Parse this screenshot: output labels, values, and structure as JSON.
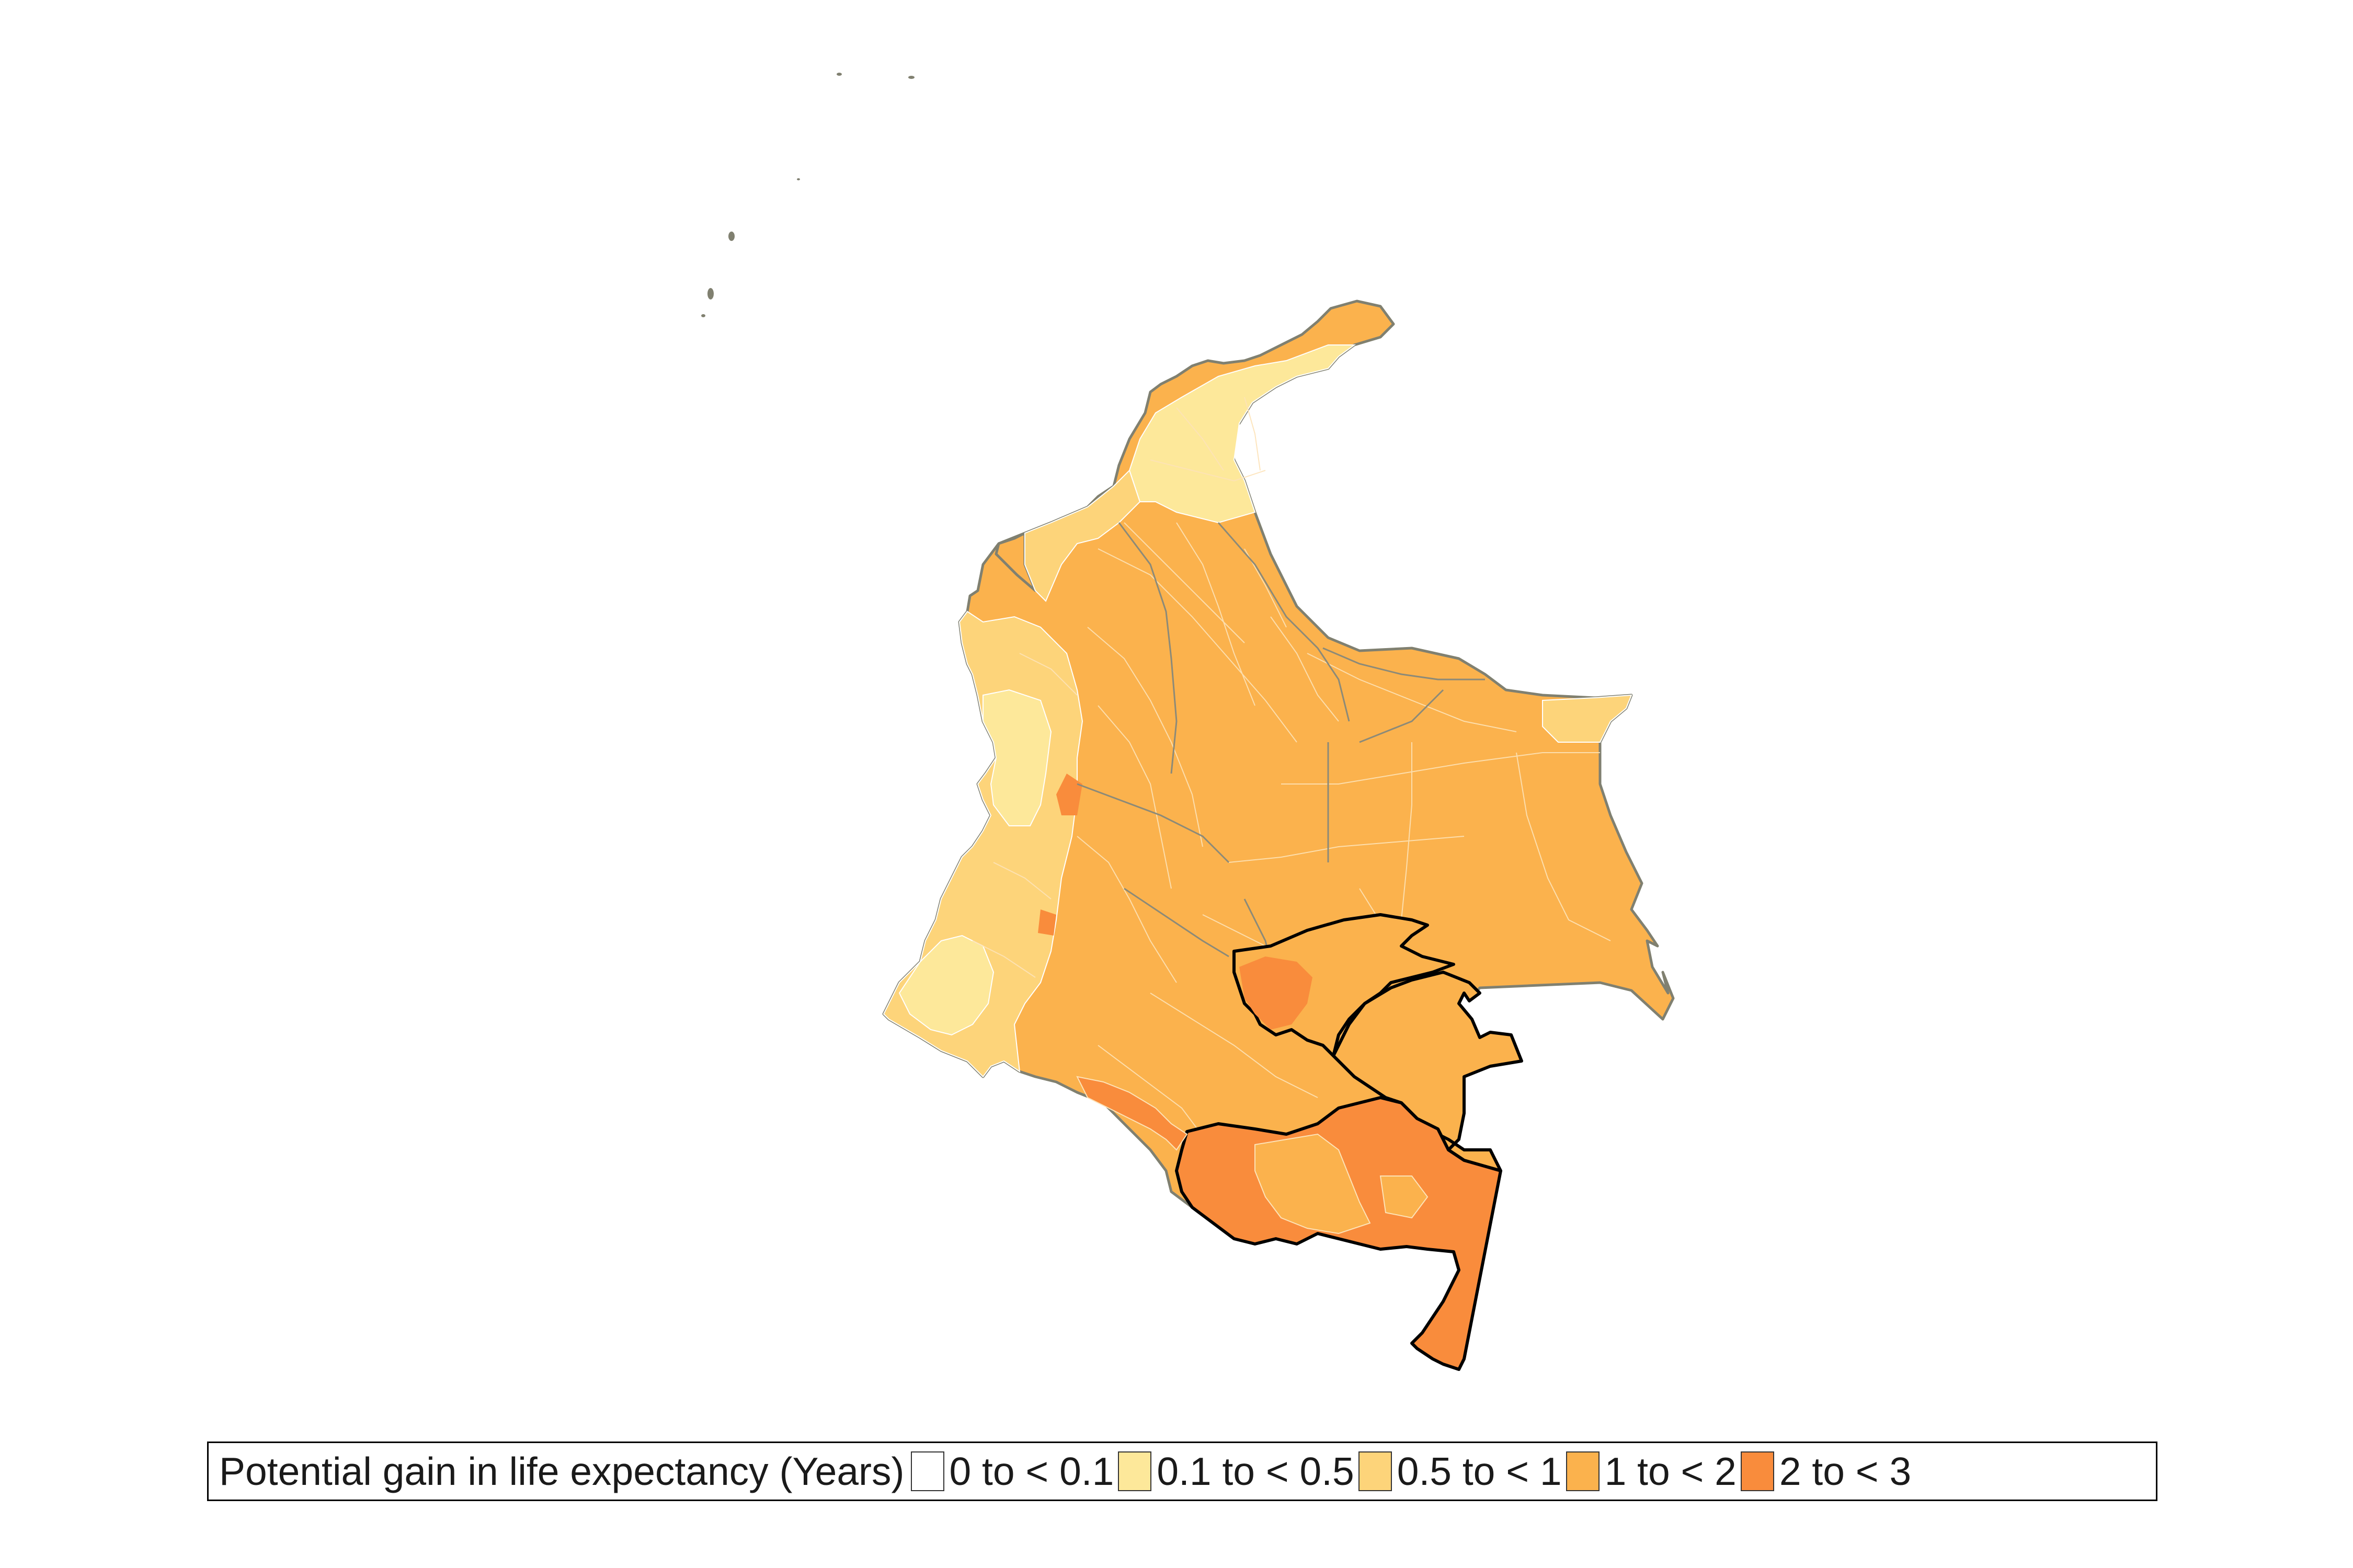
{
  "map": {
    "country": "Colombia",
    "colors": {
      "class_0": "#ffffff",
      "class_1": "#fde89a",
      "class_2": "#fdd47a",
      "class_3": "#fbb24d",
      "class_4": "#f98c3c",
      "outline": "#808070",
      "highlight_border": "#000000"
    },
    "highlighted_regions_count": 3
  },
  "legend": {
    "title": "Potential gain in life expectancy (Years)",
    "items": [
      {
        "label": "0 to < 0.1",
        "color": "#ffffff"
      },
      {
        "label": "0.1 to < 0.5",
        "color": "#fde89a"
      },
      {
        "label": "0.5 to < 1",
        "color": "#fdd47a"
      },
      {
        "label": "1 to < 2",
        "color": "#fbb24d"
      },
      {
        "label": "2 to < 3",
        "color": "#f98c3c"
      }
    ]
  }
}
